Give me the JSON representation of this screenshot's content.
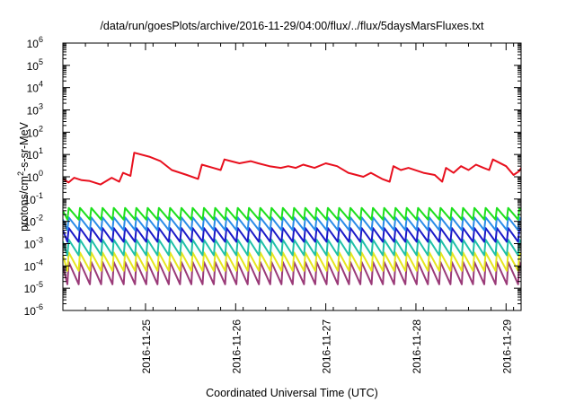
{
  "chart_data": {
    "type": "line",
    "title": "/data/run/goesPlots/archive/2016-11-29/04:00/flux/../flux/5daysMarsFluxes.txt",
    "xlabel": "Coordinated Universal Time (UTC)",
    "ylabel": {
      "prefix": "protons/cm",
      "sup": "2",
      "suffix": "-s-sr-MeV"
    },
    "x_range": [
      "2016-11-24 02:00",
      "2016-11-29 04:00"
    ],
    "x_ticks": [
      "2016-11-25",
      "2016-11-26",
      "2016-11-27",
      "2016-11-28",
      "2016-11-29"
    ],
    "y_scale": "log",
    "ylim": [
      1e-06,
      1000000.0
    ],
    "y_ticks": [
      {
        "base": "10",
        "exp": "-6"
      },
      {
        "base": "10",
        "exp": "-5"
      },
      {
        "base": "10",
        "exp": "-4"
      },
      {
        "base": "10",
        "exp": "-3"
      },
      {
        "base": "10",
        "exp": "-2"
      },
      {
        "base": "10",
        "exp": "-1"
      },
      {
        "base": "10",
        "exp": "0"
      },
      {
        "base": "10",
        "exp": "1"
      },
      {
        "base": "10",
        "exp": "2"
      },
      {
        "base": "10",
        "exp": "3"
      },
      {
        "base": "10",
        "exp": "4"
      },
      {
        "base": "10",
        "exp": "5"
      },
      {
        "base": "10",
        "exp": "6"
      }
    ],
    "grid": false,
    "legend": "none",
    "series": [
      {
        "color": "#e8101e",
        "style": "irregular",
        "values": [
          [
            "2016-11-24 02:00",
            0.8
          ],
          [
            "2016-11-24 03:30",
            0.55
          ],
          [
            "2016-11-24 05:00",
            0.9
          ],
          [
            "2016-11-24 07:00",
            0.7
          ],
          [
            "2016-11-24 09:00",
            0.65
          ],
          [
            "2016-11-24 12:00",
            0.45
          ],
          [
            "2016-11-24 15:00",
            0.9
          ],
          [
            "2016-11-24 17:00",
            0.6
          ],
          [
            "2016-11-24 18:00",
            1.5
          ],
          [
            "2016-11-24 20:00",
            1.1
          ],
          [
            "2016-11-24 21:00",
            12
          ],
          [
            "2016-11-25 01:00",
            8
          ],
          [
            "2016-11-25 04:00",
            5
          ],
          [
            "2016-11-25 07:00",
            2
          ],
          [
            "2016-11-25 11:00",
            1.2
          ],
          [
            "2016-11-25 14:00",
            0.8
          ],
          [
            "2016-11-25 15:00",
            3.5
          ],
          [
            "2016-11-25 18:00",
            2.5
          ],
          [
            "2016-11-25 20:00",
            2
          ],
          [
            "2016-11-25 21:00",
            6
          ],
          [
            "2016-11-26 01:00",
            4
          ],
          [
            "2016-11-26 04:00",
            5
          ],
          [
            "2016-11-26 06:00",
            4
          ],
          [
            "2016-11-26 09:00",
            3
          ],
          [
            "2016-11-26 12:00",
            2.5
          ],
          [
            "2016-11-26 14:00",
            3
          ],
          [
            "2016-11-26 16:00",
            2.5
          ],
          [
            "2016-11-26 18:00",
            3.5
          ],
          [
            "2016-11-26 21:00",
            2.5
          ],
          [
            "2016-11-27 00:00",
            4
          ],
          [
            "2016-11-27 03:00",
            3
          ],
          [
            "2016-11-27 06:00",
            1.5
          ],
          [
            "2016-11-27 10:00",
            1
          ],
          [
            "2016-11-27 12:00",
            1.5
          ],
          [
            "2016-11-27 15:00",
            0.8
          ],
          [
            "2016-11-27 17:00",
            0.6
          ],
          [
            "2016-11-27 18:00",
            3
          ],
          [
            "2016-11-27 20:00",
            2
          ],
          [
            "2016-11-27 22:00",
            2.5
          ],
          [
            "2016-11-28 02:00",
            1.5
          ],
          [
            "2016-11-28 05:00",
            1.2
          ],
          [
            "2016-11-28 07:00",
            0.6
          ],
          [
            "2016-11-28 08:00",
            2.5
          ],
          [
            "2016-11-28 10:00",
            1.5
          ],
          [
            "2016-11-28 12:00",
            3
          ],
          [
            "2016-11-28 14:00",
            2
          ],
          [
            "2016-11-28 16:00",
            3.5
          ],
          [
            "2016-11-28 18:00",
            2.5
          ],
          [
            "2016-11-28 19:30",
            2
          ],
          [
            "2016-11-28 20:30",
            6
          ],
          [
            "2016-11-29 00:00",
            3
          ],
          [
            "2016-11-29 02:00",
            1.2
          ],
          [
            "2016-11-29 03:30",
            1.8
          ],
          [
            "2016-11-29 04:00",
            2.5
          ]
        ]
      },
      {
        "color": "#1ee01e",
        "style": "sawtooth",
        "high": 0.04,
        "low": 0.012,
        "first_high": 0.03
      },
      {
        "color": "#2a8ce8",
        "style": "sawtooth",
        "high": 0.015,
        "low": 0.004,
        "first_high": 0.012
      },
      {
        "color": "#1a1ac8",
        "style": "sawtooth",
        "high": 0.005,
        "low": 0.0012,
        "first_high": 0.004
      },
      {
        "color": "#20c0a8",
        "style": "sawtooth",
        "high": 0.0015,
        "low": 0.0003,
        "first_high": 0.0012
      },
      {
        "color": "#e6e61e",
        "style": "sawtooth",
        "high": 0.0004,
        "low": 6e-05,
        "first_high": 0.0003
      },
      {
        "color": "#9a3a78",
        "style": "sawtooth",
        "high": 0.00015,
        "low": 1.5e-05,
        "first_high": 0.0001
      }
    ]
  }
}
